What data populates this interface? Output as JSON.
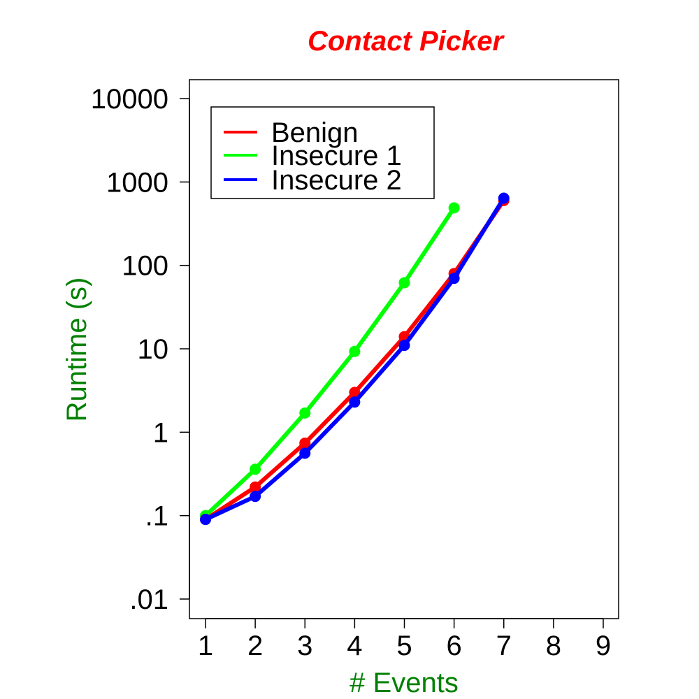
{
  "chart_data": {
    "type": "line",
    "title": "Contact Picker",
    "xlabel": "# Events",
    "ylabel": "Runtime (s)",
    "xlim": [
      1,
      9
    ],
    "ylim": [
      0.01,
      10000
    ],
    "y_scale": "log",
    "x_ticks": [
      1,
      2,
      3,
      4,
      5,
      6,
      7,
      8,
      9
    ],
    "x_tick_labels": [
      "1",
      "2",
      "3",
      "4",
      "5",
      "6",
      "7",
      "8",
      "9"
    ],
    "y_ticks": [
      0.01,
      0.1,
      1,
      10,
      100,
      1000,
      10000
    ],
    "y_tick_labels": [
      ".01",
      ".1",
      "1",
      "10",
      "100",
      "1000",
      "10000"
    ],
    "grid": false,
    "legend_position": "top-left",
    "series": [
      {
        "name": "Benign",
        "color": "#ff0000",
        "x": [
          1,
          2,
          3,
          4,
          5,
          6,
          7
        ],
        "y": [
          0.09,
          0.22,
          0.74,
          3.0,
          14,
          80,
          600
        ]
      },
      {
        "name": "Insecure 1",
        "color": "#00ff00",
        "x": [
          1,
          2,
          3,
          4,
          5,
          6
        ],
        "y": [
          0.1,
          0.36,
          1.7,
          9.3,
          62,
          490
        ]
      },
      {
        "name": "Insecure 2",
        "color": "#0000ff",
        "x": [
          1,
          2,
          3,
          4,
          5,
          6,
          7
        ],
        "y": [
          0.09,
          0.17,
          0.56,
          2.3,
          11,
          70,
          640
        ]
      }
    ],
    "colors": {
      "title": "#ff0000",
      "axis_labels": "#008000",
      "ticks": "#000000"
    }
  }
}
